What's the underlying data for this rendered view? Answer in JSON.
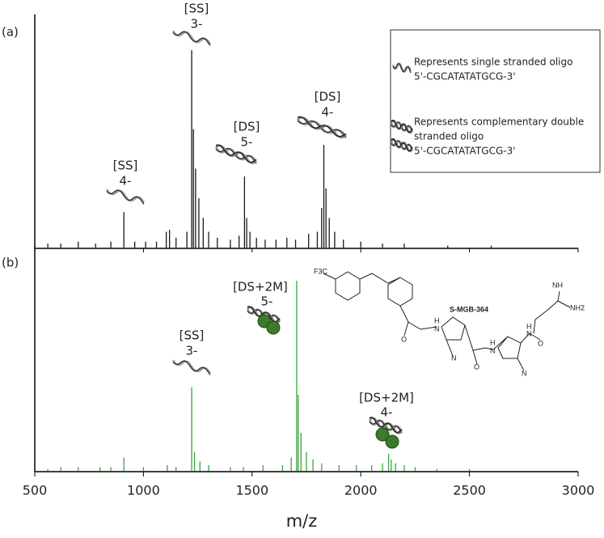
{
  "chart_data": [
    {
      "type": "stem",
      "panel_label": "(a)",
      "color": "#1a1a1a",
      "xlim": [
        500,
        3000
      ],
      "ylim": [
        0,
        100
      ],
      "x": [
        560,
        620,
        700,
        780,
        850,
        910,
        960,
        1010,
        1060,
        1105,
        1120,
        1150,
        1200,
        1222,
        1230,
        1240,
        1255,
        1275,
        1300,
        1340,
        1400,
        1440,
        1465,
        1475,
        1490,
        1520,
        1560,
        1610,
        1660,
        1700,
        1760,
        1800,
        1820,
        1830,
        1840,
        1855,
        1880,
        1920,
        2000,
        2100,
        2200,
        2400,
        2600
      ],
      "values": [
        2,
        2,
        3,
        2,
        3,
        18,
        3,
        3,
        3,
        8,
        9,
        5,
        8,
        100,
        60,
        40,
        25,
        15,
        8,
        5,
        4,
        6,
        36,
        15,
        8,
        5,
        4,
        4,
        5,
        4,
        7,
        8,
        20,
        52,
        30,
        15,
        8,
        4,
        3,
        2,
        2,
        1,
        1
      ],
      "annotations": [
        "[SS]",
        "4-",
        "[SS]",
        "3-",
        "[DS]",
        "5-",
        "[DS]",
        "4-"
      ]
    },
    {
      "type": "stem",
      "panel_label": "(b)",
      "color": "#3aa63a",
      "xlim": [
        500,
        3000
      ],
      "ylim": [
        0,
        100
      ],
      "xticks": [
        500,
        1000,
        1500,
        2000,
        2500,
        3000
      ],
      "x_label": "m/z",
      "x": [
        560,
        620,
        700,
        800,
        850,
        910,
        1000,
        1110,
        1150,
        1222,
        1235,
        1260,
        1300,
        1400,
        1460,
        1550,
        1640,
        1680,
        1705,
        1712,
        1725,
        1750,
        1780,
        1820,
        1900,
        1980,
        2050,
        2100,
        2128,
        2140,
        2160,
        2200,
        2250,
        2350,
        2500
      ],
      "values": [
        1,
        2,
        2,
        2,
        2,
        7,
        2,
        3,
        2,
        44,
        10,
        5,
        3,
        2,
        2,
        3,
        3,
        7,
        100,
        40,
        20,
        10,
        6,
        4,
        3,
        3,
        3,
        4,
        9,
        6,
        4,
        3,
        2,
        1,
        1
      ],
      "annotations": [
        "[SS]",
        "3-",
        "[DS+2M]",
        "5-",
        "[DS+2M]",
        "4-"
      ]
    }
  ],
  "legend": {
    "single": [
      "Represents single stranded oligo",
      "5'-CGCATATATGCG-3'"
    ],
    "double": [
      "Represents complementary double",
      "stranded oligo",
      "5'-CGCATATATGCG-3'"
    ]
  },
  "structure": {
    "name": "S-MGB-364",
    "labels": [
      "F3C",
      "NH",
      "NH2",
      "H",
      "N",
      "O",
      "N",
      "H",
      "N",
      "O",
      "N",
      "H",
      "N",
      "O"
    ]
  }
}
